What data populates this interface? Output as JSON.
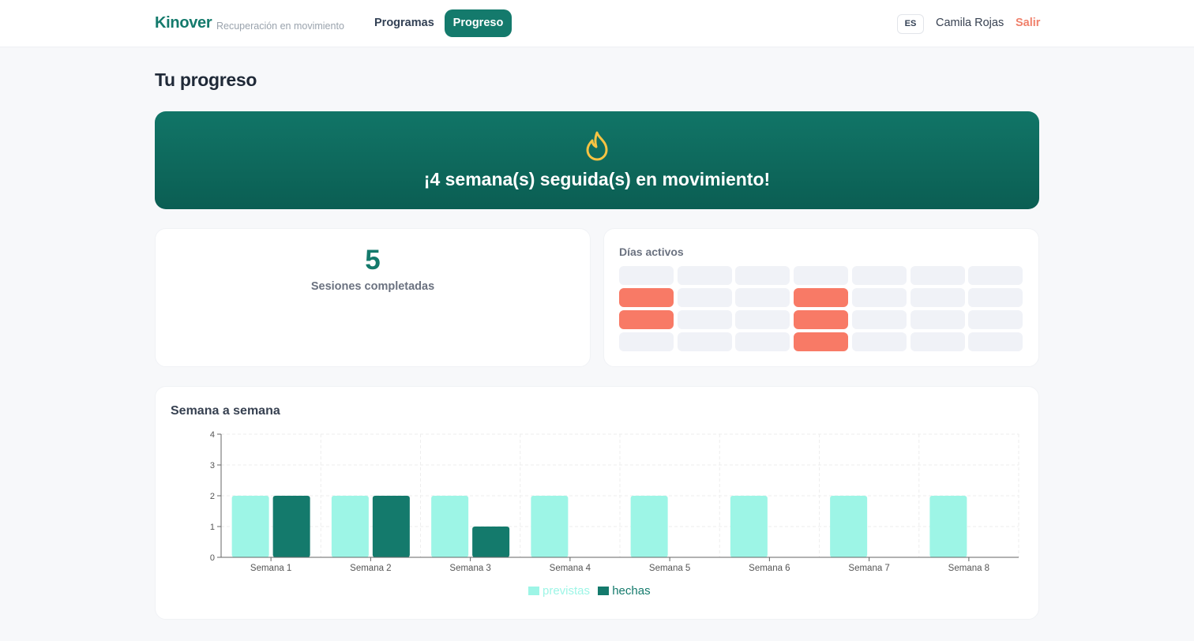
{
  "header": {
    "brand": "Kinover",
    "tagline": "Recuperación en movimiento",
    "nav": [
      {
        "label": "Programas",
        "active": false
      },
      {
        "label": "Progreso",
        "active": true
      }
    ],
    "language": "ES",
    "user_name": "Camila Rojas",
    "logout_label": "Salir",
    "accent_color": "#147a6c"
  },
  "page_title": "Tu progreso",
  "streak": {
    "icon": "flame-icon",
    "text": "¡4 semana(s) seguida(s) en movimiento!"
  },
  "sessions": {
    "count": "5",
    "label": "Sesiones completadas"
  },
  "active_days": {
    "title": "Días activos",
    "columns": 7,
    "rows": [
      [
        false,
        false,
        false,
        false,
        false,
        false,
        false
      ],
      [
        true,
        false,
        false,
        true,
        false,
        false,
        false
      ],
      [
        true,
        false,
        false,
        true,
        false,
        false,
        false
      ],
      [
        false,
        false,
        false,
        true,
        false,
        false,
        false
      ]
    ],
    "active_color": "#f87a66",
    "inactive_color": "#f0f2f7"
  },
  "weekly": {
    "title": "Semana a semana"
  },
  "chart_data": {
    "type": "bar",
    "categories": [
      "Semana 1",
      "Semana 2",
      "Semana 3",
      "Semana 4",
      "Semana 5",
      "Semana 6",
      "Semana 7",
      "Semana 8"
    ],
    "series": [
      {
        "name": "previstas",
        "values": [
          2,
          2,
          2,
          2,
          2,
          2,
          2,
          2
        ],
        "color": "#9df5e6"
      },
      {
        "name": "hechas",
        "values": [
          2,
          2,
          1,
          0,
          0,
          0,
          0,
          0
        ],
        "color": "#147a6c"
      }
    ],
    "yticks": [
      0,
      1,
      2,
      3,
      4
    ],
    "ylim": [
      0,
      4
    ],
    "xlabel": "",
    "ylabel": "",
    "grid": true,
    "legend_position": "bottom"
  }
}
